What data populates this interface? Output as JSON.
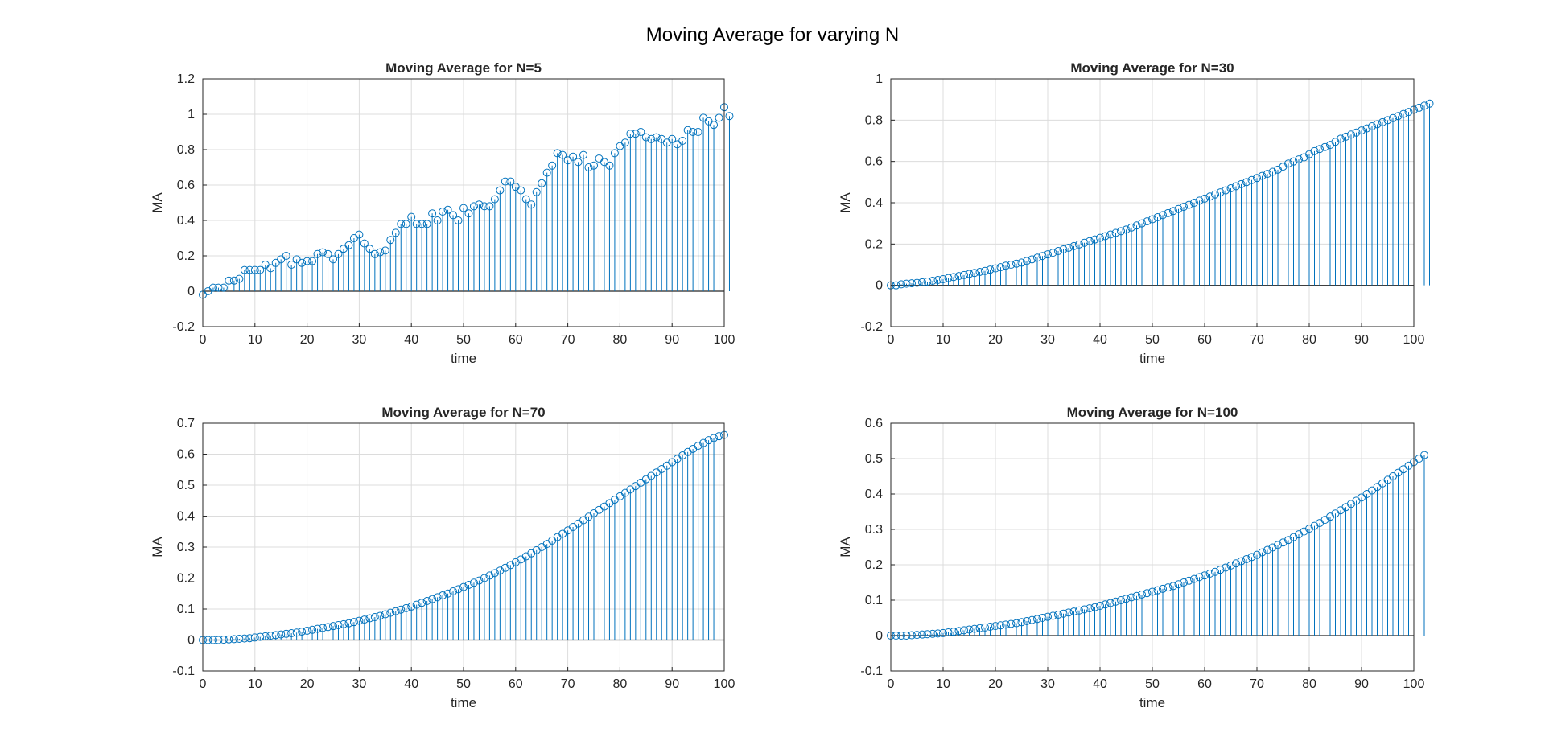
{
  "figure": {
    "title": "Moving Average for varying N"
  },
  "colors": {
    "stem": "#0072BD",
    "grid": "#dcdcdc",
    "axis": "#262626",
    "baseline": "#262626"
  },
  "chart_data": [
    {
      "type": "stem",
      "title": "Moving Average for N=5",
      "xlabel": "time",
      "ylabel": "MA",
      "xlim": [
        0,
        100
      ],
      "ylim": [
        -0.2,
        1.2
      ],
      "xticks": [
        "0",
        "10",
        "20",
        "30",
        "40",
        "50",
        "60",
        "70",
        "80",
        "90",
        "100"
      ],
      "yticks": [
        "-0.2",
        "0",
        "0.2",
        "0.4",
        "0.6",
        "0.8",
        "1",
        "1.2"
      ],
      "grid": true,
      "x_start": 0,
      "x_step": 1,
      "values": [
        -0.02,
        0,
        0.02,
        0.02,
        0.02,
        0.06,
        0.06,
        0.07,
        0.12,
        0.12,
        0.12,
        0.12,
        0.15,
        0.13,
        0.16,
        0.18,
        0.2,
        0.15,
        0.18,
        0.16,
        0.17,
        0.17,
        0.21,
        0.22,
        0.21,
        0.18,
        0.21,
        0.24,
        0.26,
        0.3,
        0.32,
        0.27,
        0.24,
        0.21,
        0.22,
        0.23,
        0.29,
        0.33,
        0.38,
        0.38,
        0.42,
        0.38,
        0.38,
        0.38,
        0.44,
        0.4,
        0.45,
        0.46,
        0.43,
        0.4,
        0.47,
        0.44,
        0.48,
        0.49,
        0.48,
        0.48,
        0.52,
        0.57,
        0.62,
        0.62,
        0.59,
        0.57,
        0.52,
        0.49,
        0.56,
        0.61,
        0.67,
        0.71,
        0.78,
        0.77,
        0.74,
        0.76,
        0.73,
        0.77,
        0.7,
        0.71,
        0.75,
        0.73,
        0.71,
        0.78,
        0.82,
        0.84,
        0.89,
        0.89,
        0.9,
        0.87,
        0.86,
        0.87,
        0.86,
        0.84,
        0.86,
        0.83,
        0.85,
        0.91,
        0.9,
        0.9,
        0.98,
        0.96,
        0.94,
        0.98,
        1.04,
        0.99
      ]
    },
    {
      "type": "stem",
      "title": "Moving Average for N=30",
      "xlabel": "time",
      "ylabel": "MA",
      "xlim": [
        0,
        100
      ],
      "ylim": [
        -0.2,
        1
      ],
      "xticks": [
        "0",
        "10",
        "20",
        "30",
        "40",
        "50",
        "60",
        "70",
        "80",
        "90",
        "100"
      ],
      "yticks": [
        "-0.2",
        "0",
        "0.2",
        "0.4",
        "0.6",
        "0.8",
        "1"
      ],
      "grid": true,
      "x_start": 0,
      "x_step": 1,
      "values": [
        0,
        0,
        0.005,
        0.008,
        0.01,
        0.012,
        0.015,
        0.018,
        0.022,
        0.026,
        0.03,
        0.035,
        0.04,
        0.045,
        0.05,
        0.055,
        0.06,
        0.065,
        0.07,
        0.076,
        0.082,
        0.088,
        0.095,
        0.1,
        0.105,
        0.11,
        0.118,
        0.126,
        0.134,
        0.142,
        0.15,
        0.158,
        0.166,
        0.174,
        0.182,
        0.19,
        0.198,
        0.206,
        0.214,
        0.222,
        0.23,
        0.238,
        0.246,
        0.254,
        0.262,
        0.27,
        0.28,
        0.29,
        0.3,
        0.31,
        0.32,
        0.33,
        0.34,
        0.35,
        0.36,
        0.37,
        0.38,
        0.39,
        0.4,
        0.41,
        0.42,
        0.43,
        0.44,
        0.45,
        0.46,
        0.47,
        0.48,
        0.49,
        0.5,
        0.51,
        0.52,
        0.53,
        0.54,
        0.55,
        0.56,
        0.575,
        0.59,
        0.6,
        0.61,
        0.62,
        0.635,
        0.65,
        0.66,
        0.67,
        0.68,
        0.695,
        0.71,
        0.72,
        0.73,
        0.74,
        0.75,
        0.76,
        0.77,
        0.78,
        0.79,
        0.8,
        0.81,
        0.82,
        0.83,
        0.84,
        0.85,
        0.86,
        0.87,
        0.88
      ]
    },
    {
      "type": "stem",
      "title": "Moving Average for N=70",
      "xlabel": "time",
      "ylabel": "MA",
      "xlim": [
        0,
        100
      ],
      "ylim": [
        -0.1,
        0.7
      ],
      "xticks": [
        "0",
        "10",
        "20",
        "30",
        "40",
        "50",
        "60",
        "70",
        "80",
        "90",
        "100"
      ],
      "yticks": [
        "-0.1",
        "0",
        "0.1",
        "0.2",
        "0.3",
        "0.4",
        "0.5",
        "0.6",
        "0.7"
      ],
      "grid": true,
      "x_start": 0,
      "x_step": 1,
      "values": [
        0,
        0,
        0,
        0,
        0.001,
        0.002,
        0.003,
        0.004,
        0.005,
        0.006,
        0.008,
        0.01,
        0.012,
        0.014,
        0.016,
        0.018,
        0.02,
        0.022,
        0.024,
        0.027,
        0.03,
        0.033,
        0.036,
        0.039,
        0.042,
        0.045,
        0.048,
        0.051,
        0.054,
        0.058,
        0.062,
        0.066,
        0.07,
        0.074,
        0.078,
        0.083,
        0.088,
        0.093,
        0.098,
        0.103,
        0.108,
        0.114,
        0.12,
        0.126,
        0.132,
        0.138,
        0.144,
        0.15,
        0.157,
        0.164,
        0.171,
        0.178,
        0.185,
        0.192,
        0.2,
        0.208,
        0.216,
        0.224,
        0.233,
        0.242,
        0.251,
        0.26,
        0.27,
        0.28,
        0.29,
        0.3,
        0.31,
        0.321,
        0.332,
        0.343,
        0.354,
        0.365,
        0.376,
        0.387,
        0.398,
        0.409,
        0.42,
        0.431,
        0.442,
        0.453,
        0.464,
        0.475,
        0.486,
        0.497,
        0.508,
        0.519,
        0.53,
        0.541,
        0.552,
        0.563,
        0.574,
        0.585,
        0.596,
        0.607,
        0.617,
        0.627,
        0.636,
        0.645,
        0.652,
        0.658,
        0.662
      ]
    },
    {
      "type": "stem",
      "title": "Moving Average for N=100",
      "xlabel": "time",
      "ylabel": "MA",
      "xlim": [
        0,
        100
      ],
      "ylim": [
        -0.1,
        0.6
      ],
      "xticks": [
        "0",
        "10",
        "20",
        "30",
        "40",
        "50",
        "60",
        "70",
        "80",
        "90",
        "100"
      ],
      "yticks": [
        "-0.1",
        "0",
        "0.1",
        "0.2",
        "0.3",
        "0.4",
        "0.5",
        "0.6"
      ],
      "grid": true,
      "x_start": 0,
      "x_step": 1,
      "values": [
        0,
        0,
        0,
        0,
        0.001,
        0.002,
        0.003,
        0.004,
        0.005,
        0.006,
        0.007,
        0.009,
        0.011,
        0.013,
        0.015,
        0.017,
        0.019,
        0.021,
        0.023,
        0.025,
        0.027,
        0.029,
        0.031,
        0.033,
        0.035,
        0.038,
        0.041,
        0.044,
        0.047,
        0.05,
        0.053,
        0.056,
        0.059,
        0.062,
        0.065,
        0.068,
        0.071,
        0.074,
        0.077,
        0.08,
        0.084,
        0.088,
        0.092,
        0.096,
        0.1,
        0.104,
        0.108,
        0.112,
        0.116,
        0.12,
        0.124,
        0.128,
        0.132,
        0.136,
        0.14,
        0.145,
        0.15,
        0.155,
        0.16,
        0.165,
        0.17,
        0.175,
        0.18,
        0.186,
        0.192,
        0.198,
        0.204,
        0.21,
        0.216,
        0.222,
        0.228,
        0.235,
        0.242,
        0.249,
        0.256,
        0.263,
        0.27,
        0.278,
        0.286,
        0.294,
        0.302,
        0.31,
        0.318,
        0.327,
        0.336,
        0.345,
        0.354,
        0.363,
        0.372,
        0.381,
        0.39,
        0.4,
        0.41,
        0.42,
        0.43,
        0.44,
        0.45,
        0.46,
        0.47,
        0.48,
        0.49,
        0.5,
        0.51
      ]
    }
  ]
}
